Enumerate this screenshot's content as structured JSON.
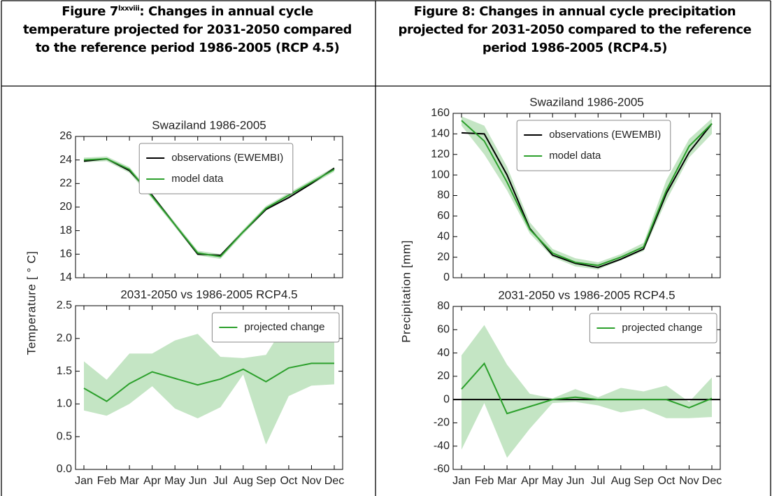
{
  "table": {
    "headers": [
      {
        "label": "Figure 7",
        "note": "lxxviii",
        "caption": ": Changes in annual cycle temperature projected for 2031-2050 compared to the reference period 1986-2005 (RCP 4.5)"
      },
      {
        "caption": "Figure 8: Changes in annual cycle precipitation projected for 2031-2050 compared to the reference period 1986-2005 (RCP4.5)"
      }
    ]
  },
  "chart_data": [
    {
      "type": "line",
      "title": "Swaziland  1986-2005",
      "ylabel": "Temperature [ ° C]",
      "categories": [
        "Jan",
        "Feb",
        "Mar",
        "Apr",
        "May",
        "Jun",
        "Jul",
        "Aug",
        "Sep",
        "Oct",
        "Nov",
        "Dec"
      ],
      "ylim": [
        14,
        26
      ],
      "yticks": [
        14,
        16,
        18,
        20,
        22,
        24,
        26
      ],
      "legend": "upper center",
      "series": [
        {
          "name": "observations (EWEMBI)",
          "color": "#000000",
          "values": [
            23.9,
            24.1,
            23.1,
            21.0,
            18.5,
            16.0,
            15.9,
            17.9,
            19.8,
            20.8,
            22.0,
            23.3
          ]
        },
        {
          "name": "model data",
          "color": "#2ca02c",
          "values": [
            24.0,
            24.1,
            23.2,
            20.9,
            18.5,
            16.1,
            15.8,
            17.9,
            19.9,
            21.0,
            22.1,
            23.2
          ],
          "range_low": [
            23.8,
            23.9,
            22.9,
            20.7,
            18.3,
            15.9,
            15.6,
            17.7,
            19.7,
            20.8,
            21.9,
            23.0
          ],
          "range_high": [
            24.2,
            24.3,
            23.4,
            21.1,
            18.7,
            16.3,
            16.0,
            18.1,
            20.1,
            21.2,
            22.3,
            23.4
          ]
        }
      ]
    },
    {
      "type": "line",
      "title": "2031-2050 vs 1986-2005 RCP4.5",
      "categories": [
        "Jan",
        "Feb",
        "Mar",
        "Apr",
        "May",
        "Jun",
        "Jul",
        "Aug",
        "Sep",
        "Oct",
        "Nov",
        "Dec"
      ],
      "ylim": [
        0,
        2.5
      ],
      "yticks": [
        {
          "value": 0,
          "label": "0.0"
        },
        0.5,
        {
          "value": 1,
          "label": "1.0"
        },
        1.5,
        {
          "value": 2,
          "label": "2.0"
        },
        2.5
      ],
      "legend": "upper right",
      "series": [
        {
          "name": "projected change",
          "color": "#2ca02c",
          "values": [
            1.24,
            1.04,
            1.31,
            1.49,
            1.39,
            1.29,
            1.38,
            1.53,
            1.34,
            1.55,
            1.62,
            1.62
          ],
          "range_low": [
            0.9,
            0.82,
            1.0,
            1.27,
            0.93,
            0.78,
            0.95,
            1.45,
            0.38,
            1.12,
            1.28,
            1.3
          ],
          "range_high": [
            1.65,
            1.37,
            1.77,
            1.77,
            1.97,
            2.07,
            1.72,
            1.7,
            1.75,
            2.3,
            2.0,
            2.38
          ]
        }
      ]
    },
    {
      "type": "line",
      "title": "Swaziland  1986-2005",
      "ylabel": "Precipitation [mm]",
      "categories": [
        "Jan",
        "Feb",
        "Mar",
        "Apr",
        "May",
        "Jun",
        "Jul",
        "Aug",
        "Sep",
        "Oct",
        "Nov",
        "Dec"
      ],
      "ylim": [
        0,
        160
      ],
      "yticks": [
        0,
        20,
        40,
        60,
        80,
        100,
        120,
        140,
        160
      ],
      "legend": "upper center",
      "series": [
        {
          "name": "observations (EWEMBI)",
          "color": "#000000",
          "values": [
            141,
            140,
            100,
            48,
            22,
            14,
            10,
            18,
            28,
            82,
            122,
            150
          ]
        },
        {
          "name": "model data",
          "color": "#2ca02c",
          "values": [
            153,
            133,
            93,
            47,
            24,
            15,
            12,
            20,
            30,
            85,
            128,
            150
          ],
          "range_low": [
            148,
            120,
            85,
            43,
            20,
            11,
            8,
            17,
            26,
            75,
            117,
            140
          ],
          "range_high": [
            157,
            148,
            108,
            54,
            28,
            19,
            15,
            23,
            34,
            95,
            135,
            155
          ]
        }
      ]
    },
    {
      "type": "line",
      "title": "2031-2050 vs 1986-2005 RCP4.5",
      "categories": [
        "Jan",
        "Feb",
        "Mar",
        "Apr",
        "May",
        "Jun",
        "Jul",
        "Aug",
        "Sep",
        "Oct",
        "Nov",
        "Dec"
      ],
      "ylim": [
        -60,
        80
      ],
      "yticks": [
        -60,
        -40,
        -20,
        0,
        20,
        40,
        60,
        80
      ],
      "legend": "upper right",
      "hline": 0,
      "series": [
        {
          "name": "projected change",
          "color": "#2ca02c",
          "values": [
            9,
            31,
            -12,
            -6,
            0,
            2,
            0,
            0,
            0,
            0,
            -7,
            1
          ],
          "range_low": [
            -43,
            -3,
            -50,
            -25,
            -3,
            -2,
            -5,
            -11,
            -8,
            -16,
            -16,
            -15
          ],
          "range_high": [
            38,
            64,
            30,
            5,
            1,
            9,
            2,
            10,
            7,
            12,
            -2,
            19
          ]
        }
      ]
    }
  ]
}
